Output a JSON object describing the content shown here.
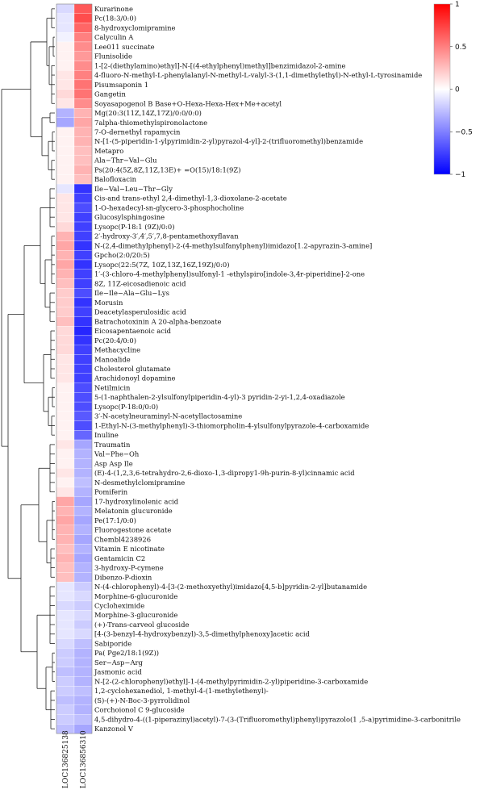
{
  "chart_data": {
    "type": "heatmap",
    "columns": [
      "LOC136825138",
      "LOC136856310"
    ],
    "rows": [
      {
        "label": "Kurarinone",
        "values": [
          -0.15,
          0.65
        ]
      },
      {
        "label": "Pc(18:3/0:0)",
        "values": [
          -0.1,
          0.7
        ]
      },
      {
        "label": "8-hydroxyclomipramine",
        "values": [
          -0.1,
          0.6
        ]
      },
      {
        "label": "Calyculin A",
        "values": [
          -0.05,
          0.5
        ]
      },
      {
        "label": "Lee011 succinate",
        "values": [
          0.05,
          0.45
        ]
      },
      {
        "label": "Flunisolide",
        "values": [
          0.05,
          0.4
        ]
      },
      {
        "label": "1-[2-(diethylamino)ethyl]-N-[(4-ethylphenyl)methyl]benzimidazol-2-amine",
        "values": [
          0.05,
          0.45
        ]
      },
      {
        "label": "4-fluoro-N-methyl-L-phenylalanyl-N-methyl-L-valyl-3-(1,1-dimethylethyl)-N-ethyl-L-tyrosinamide",
        "values": [
          0.1,
          0.5
        ]
      },
      {
        "label": "Pisumsaponin 1",
        "values": [
          0.1,
          0.55
        ]
      },
      {
        "label": "Gangetin",
        "values": [
          0.15,
          0.55
        ]
      },
      {
        "label": "Soyasapogenol B Base+O-Hexa-Hexa-Hex+Me+acetyl",
        "values": [
          0.1,
          0.45
        ]
      },
      {
        "label": "Mg(20:3(11Z,14Z,17Z)/0:0/0:0)",
        "values": [
          -0.3,
          0.3
        ]
      },
      {
        "label": "7alpha-thiomethylspironolactone",
        "values": [
          -0.35,
          0.35
        ]
      },
      {
        "label": "7-O-dernethyl rapamycin",
        "values": [
          0.05,
          0.3
        ]
      },
      {
        "label": "N-[1-(5-piperidin-1-ylpyrimidin-2-yl)pyrazol-4-yl]-2-(trifluoromethyl)benzamide",
        "values": [
          0.05,
          0.3
        ]
      },
      {
        "label": "Metapro",
        "values": [
          0.05,
          0.25
        ]
      },
      {
        "label": "Ala−Thr−Val−Glu",
        "values": [
          0.05,
          0.25
        ]
      },
      {
        "label": "Ps(20:4(5Z,8Z,11Z,13E)+ =O(15)/18:1(9Z)",
        "values": [
          0.05,
          0.3
        ]
      },
      {
        "label": "Balofloxacin",
        "values": [
          0.05,
          0.25
        ]
      },
      {
        "label": "Ile−Val−Leu−Thr−Gly",
        "values": [
          -0.1,
          -0.8
        ]
      },
      {
        "label": "Cis-and trans-ethyl 2,4-dimethyl-1,3-dioxolane-2-acetate",
        "values": [
          0.1,
          -0.75
        ]
      },
      {
        "label": "1-O-hexadecyl-sn-glycero-3-phosphocholine",
        "values": [
          0.1,
          -0.7
        ]
      },
      {
        "label": "Glucosylsphingosine",
        "values": [
          0.1,
          -0.75
        ]
      },
      {
        "label": "Lysopc(P-18:1 (9Z)/0:0)",
        "values": [
          0.15,
          -0.75
        ]
      },
      {
        "label": "2′-hydroxy-3′,4′,5′,7,8-pentamethoxyflavan",
        "values": [
          0.3,
          -0.75
        ]
      },
      {
        "label": "N-(2,4-dimethylphenyl)-2-(4-methylsulfanylphenyl)imidazo[1.2-apyrazin-3-amine]",
        "values": [
          0.35,
          -0.8
        ]
      },
      {
        "label": "Gpcho(2:0/20:5)",
        "values": [
          0.3,
          -0.75
        ]
      },
      {
        "label": "Lysopc(22:5(7Z, 10Z,13Z,16Z,19Z)/0:0)",
        "values": [
          0.35,
          -0.8
        ]
      },
      {
        "label": "1′-(3-chloro-4-methylphenyl)sulfonyl-1 -ethylspiro[indole-3,4r-piperidine]-2-one",
        "values": [
          0.3,
          -0.75
        ]
      },
      {
        "label": "8Z, 11Z-eicosadienoic acid",
        "values": [
          0.25,
          -0.75
        ]
      },
      {
        "label": "Ile−Ile−Ala−Glu−Lys",
        "values": [
          0.2,
          -0.7
        ]
      },
      {
        "label": "Morusin",
        "values": [
          0.2,
          -0.8
        ]
      },
      {
        "label": "Deacetylasperulosidic acid",
        "values": [
          0.2,
          -0.75
        ]
      },
      {
        "label": "Batrachotoxinin A 20-alpha-benzoate",
        "values": [
          0.25,
          -0.8
        ]
      },
      {
        "label": "Eicosapentaenoic acid",
        "values": [
          0.15,
          -0.85
        ]
      },
      {
        "label": "Pc(20:4/0:0)",
        "values": [
          0.15,
          -0.8
        ]
      },
      {
        "label": "Methacycline",
        "values": [
          0.15,
          -0.75
        ]
      },
      {
        "label": "Manoalide",
        "values": [
          0.1,
          -0.75
        ]
      },
      {
        "label": "Cholesterol glutamate",
        "values": [
          0.1,
          -0.75
        ]
      },
      {
        "label": "Arachidonoyl dopamine",
        "values": [
          0.1,
          -0.75
        ]
      },
      {
        "label": "Netilmicin",
        "values": [
          0.05,
          -0.7
        ]
      },
      {
        "label": "5-(1-naphthalen-2-ylsulfonylpiperidin-4-yl)-3 pyridin-2-yi-1,2,4-oxadiazole",
        "values": [
          0.05,
          -0.7
        ]
      },
      {
        "label": "Lysopc(P-18:0/0:0)",
        "values": [
          0.05,
          -0.7
        ]
      },
      {
        "label": "3′-N-acetylneuraminyl-N-acetyllactosamine",
        "values": [
          0.05,
          -0.65
        ]
      },
      {
        "label": "1-Ethyl-N-(3-methylphenyl)-3-thiomorpholin-4-ylsulfonylpyrazole-4-carboxamide",
        "values": [
          0.05,
          -0.7
        ]
      },
      {
        "label": "Inuline",
        "values": [
          0.05,
          -0.6
        ]
      },
      {
        "label": "Traumatin",
        "values": [
          0.1,
          -0.35
        ]
      },
      {
        "label": "Val−Phe−Oh",
        "values": [
          0.05,
          -0.3
        ]
      },
      {
        "label": "Asp Asp Ile",
        "values": [
          0.05,
          -0.3
        ]
      },
      {
        "label": "(E)-4-(1,2,3,6-tetrahydro-2,6-dioxo-1,3-dipropy1-9h-purin-8-yl)cinnamic acid",
        "values": [
          0.1,
          -0.3
        ]
      },
      {
        "label": "N-desmethylclomipramine",
        "values": [
          0.05,
          -0.25
        ]
      },
      {
        "label": "Pomiferin",
        "values": [
          0.1,
          -0.3
        ]
      },
      {
        "label": "17-hydroxylinolenic acid",
        "values": [
          0.35,
          -0.35
        ]
      },
      {
        "label": "Melatonin glucuronide",
        "values": [
          0.3,
          -0.3
        ]
      },
      {
        "label": "Pe(17:1/0:0)",
        "values": [
          0.35,
          -0.35
        ]
      },
      {
        "label": "Fluorogestone acetate",
        "values": [
          0.3,
          -0.3
        ]
      },
      {
        "label": "Chembl4238926",
        "values": [
          0.3,
          -0.35
        ]
      },
      {
        "label": "Vitamin E nicotinate",
        "values": [
          0.25,
          -0.3
        ]
      },
      {
        "label": "Gentamicin C2",
        "values": [
          0.3,
          -0.35
        ]
      },
      {
        "label": "3-hydroxy-P-cymene",
        "values": [
          0.25,
          -0.3
        ]
      },
      {
        "label": "Dibenzo-P-dioxin",
        "values": [
          0.25,
          -0.3
        ]
      },
      {
        "label": "N-(4-chlorophenyl)-4-[3-(2-methoxyethyl)imidazo[4,5-b]pyridin-2-yl]butanamide",
        "values": [
          -0.1,
          -0.2
        ]
      },
      {
        "label": "Morphine-6-glucuronide",
        "values": [
          -0.1,
          -0.15
        ]
      },
      {
        "label": "Cycloheximide",
        "values": [
          -0.15,
          -0.2
        ]
      },
      {
        "label": "Morphine-3-glucuronide",
        "values": [
          -0.1,
          -0.15
        ]
      },
      {
        "label": "(+)-Trans-carveol glucoside",
        "values": [
          -0.1,
          -0.2
        ]
      },
      {
        "label": "[4-(3-benzyl-4-hydroxybenzyl)-3,5-dimethylphenoxy]acetic acid",
        "values": [
          -0.1,
          -0.15
        ]
      },
      {
        "label": "Sabiporide",
        "values": [
          -0.15,
          -0.25
        ]
      },
      {
        "label": "Pa( Pge2/18:1(9Z))",
        "values": [
          -0.2,
          -0.3
        ]
      },
      {
        "label": "Ser−Asp−Arg",
        "values": [
          -0.2,
          -0.3
        ]
      },
      {
        "label": "Jasmonic acid",
        "values": [
          -0.25,
          -0.3
        ]
      },
      {
        "label": "N-[2-(2-chlorophenyl)ethyl]-1-(4-methylpyrimidin-2-yl)piperidine-3-carboxamide",
        "values": [
          -0.2,
          -0.3
        ]
      },
      {
        "label": "1,2-cyclohexanediol, 1-methyl-4-(1-methylethenyl)-",
        "values": [
          -0.2,
          -0.25
        ]
      },
      {
        "label": "(S)-(+)-N-Boc-3-pyrrolidinol",
        "values": [
          -0.25,
          -0.3
        ]
      },
      {
        "label": "Corchoionol C 9-glucoside",
        "values": [
          -0.2,
          -0.3
        ]
      },
      {
        "label": "4,5-dihydro-4-((1-piperazinyl)acetyl)-7-(3-(Trifluoromethyl)phenyl)pyrazolo(1 ,5-a)pyrimidine-3-carbonitrile",
        "values": [
          -0.2,
          -0.25
        ]
      },
      {
        "label": "Kanzonol V",
        "values": [
          -0.25,
          -0.35
        ]
      }
    ],
    "colorbar": {
      "min": -1,
      "max": 1,
      "ticks": [
        1,
        0.5,
        0,
        -0.5,
        -1
      ],
      "tick_labels": [
        "1",
        "0.5",
        "0",
        "−0.5",
        "−1"
      ],
      "colors": {
        "low": "#0000ff",
        "mid": "#ffffff",
        "high": "#ff0000"
      }
    },
    "title": "",
    "xlabel": "",
    "ylabel": ""
  }
}
